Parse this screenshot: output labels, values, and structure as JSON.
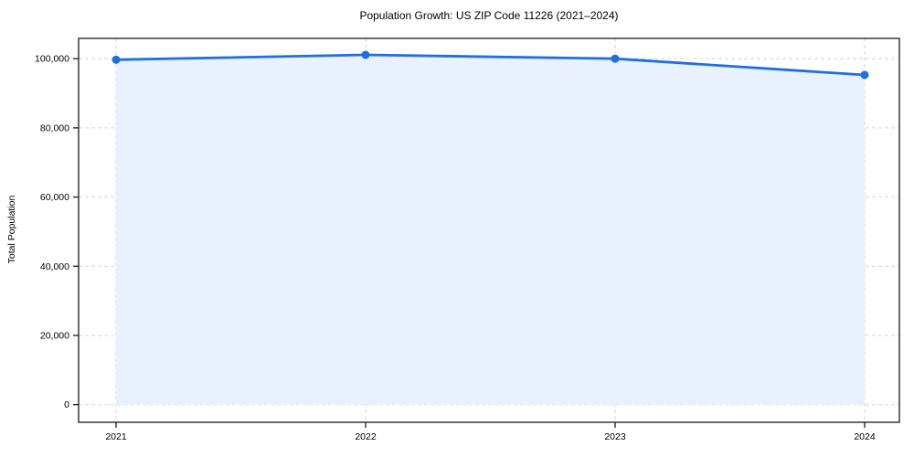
{
  "figure": {
    "background": "#ffffff"
  },
  "chart_data": {
    "type": "line",
    "title": "Population Growth: US ZIP Code 11226 (2021–2024)",
    "xlabel": "",
    "ylabel": "Total Population",
    "categories": [
      "2021",
      "2022",
      "2023",
      "2024"
    ],
    "series": [
      {
        "name": "Total Population",
        "values": [
          99700,
          101100,
          100000,
          95300
        ]
      }
    ],
    "x_tick_labels": [
      "2021",
      "2022",
      "2023",
      "2024"
    ],
    "y_ticks": {
      "values": [
        0,
        20000,
        40000,
        60000,
        80000,
        100000
      ],
      "labels": [
        "0",
        "20,000",
        "40,000",
        "60,000",
        "80,000",
        "100,000"
      ]
    },
    "ylim": [
      0,
      100000
    ],
    "grid": true,
    "grid_style": "dashed",
    "legend": "none",
    "area_fill": true,
    "markers": true,
    "colors": {
      "line": "#1f6fe0",
      "marker": "#1f6fe0",
      "fill": "#e9f1fc",
      "grid": "#d6d6d6",
      "spine": "#1a1a1a",
      "text": "#000000"
    }
  }
}
